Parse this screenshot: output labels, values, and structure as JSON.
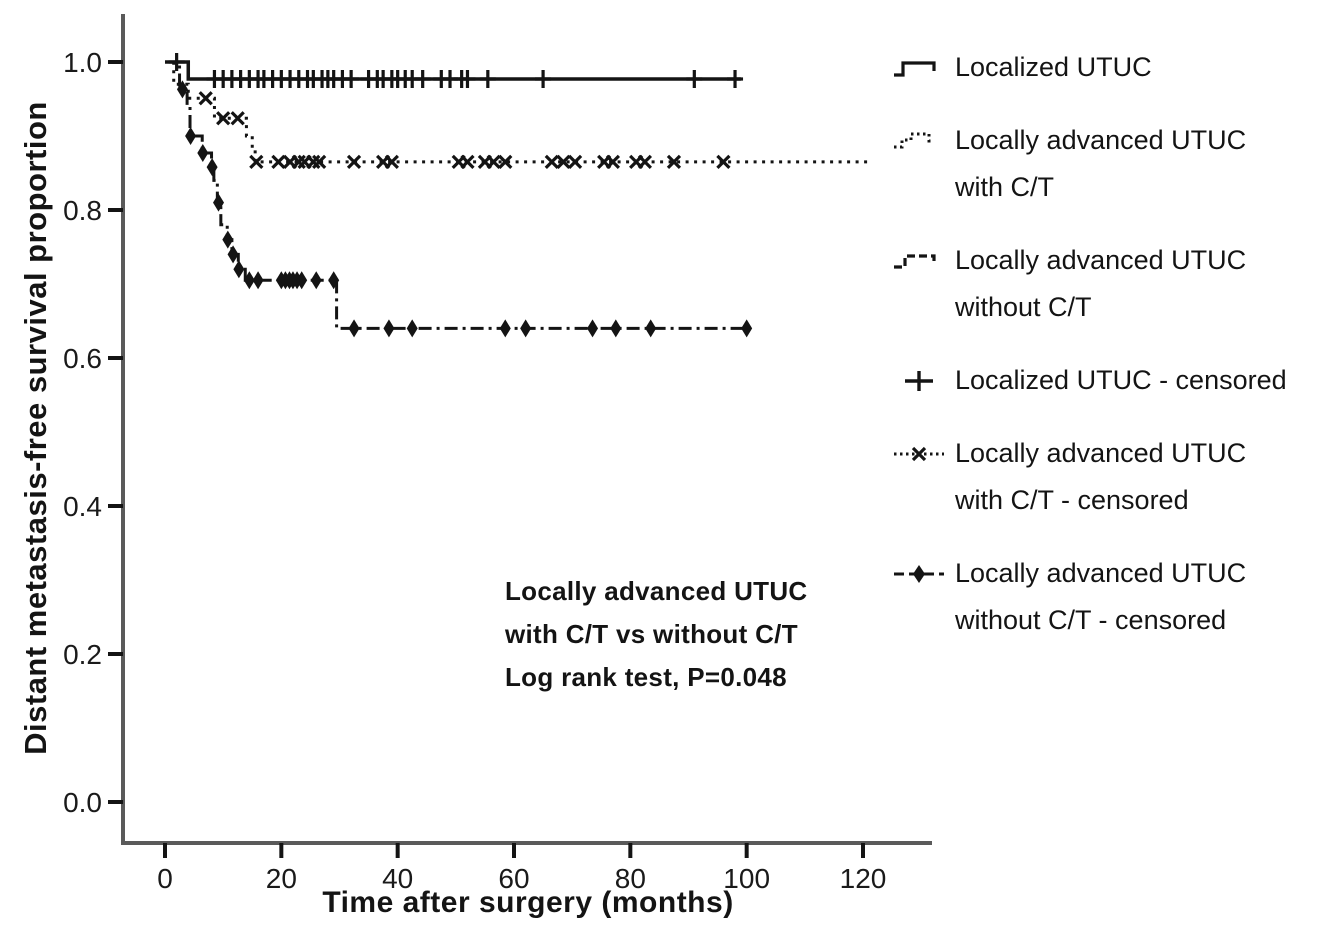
{
  "colors": {
    "ink": "#141414",
    "axis": "#5a5a5a",
    "background": "#ffffff"
  },
  "chart_data": {
    "type": "line",
    "subtype": "kaplan-meier-step",
    "title": "",
    "xlabel": "Time after surgery (months)",
    "ylabel": "Distant metastasis-free survival proportion",
    "xlim": [
      0,
      132
    ],
    "ylim": [
      0.0,
      1.0
    ],
    "x_ticks": [
      "0",
      "20",
      "40",
      "60",
      "80",
      "100",
      "120"
    ],
    "y_ticks": [
      "0.0",
      "0.2",
      "0.4",
      "0.6",
      "0.8",
      "1.0"
    ],
    "grid": false,
    "legend_position": "right-outside",
    "annotation_lines": [
      "Locally advanced UTUC",
      "with C/T vs without C/T",
      "Log rank test, P=0.048"
    ],
    "series": [
      {
        "name": "Localized UTUC",
        "line_style": "solid",
        "marker": "plus",
        "steps": [
          [
            0,
            1.0
          ],
          [
            4,
            0.977
          ],
          [
            99,
            0.977
          ]
        ],
        "censored_times": [
          2,
          8.5,
          10,
          11.5,
          13,
          14.5,
          16,
          17,
          18.5,
          20,
          21.5,
          23,
          24.5,
          25.5,
          27,
          28,
          29,
          30.5,
          32,
          35,
          36.5,
          37.5,
          39,
          40,
          41.3,
          42.5,
          44.3,
          47.5,
          49,
          51,
          52,
          55.5,
          65,
          91,
          98
        ]
      },
      {
        "name": "Locally advanced UTUC with C/T",
        "line_style": "dotted",
        "marker": "x",
        "steps": [
          [
            0,
            1.0
          ],
          [
            1.5,
            0.97
          ],
          [
            4,
            0.951
          ],
          [
            8.5,
            0.924
          ],
          [
            14,
            0.9
          ],
          [
            15,
            0.882
          ],
          [
            15.5,
            0.865
          ],
          [
            121,
            0.865
          ]
        ],
        "censored_times": [
          7,
          10,
          12.5,
          15.7,
          19.5,
          21.5,
          23,
          24,
          25.5,
          26.5,
          32.5,
          37.5,
          39,
          50.5,
          52,
          55,
          56.5,
          58.5,
          66.5,
          68.5,
          70.5,
          75.5,
          77,
          81,
          82.5,
          87.5,
          96
        ]
      },
      {
        "name": "Locally advanced UTUC without C/T",
        "line_style": "dashdot",
        "marker": "diamond",
        "steps": [
          [
            0,
            1.0
          ],
          [
            2.5,
            0.963
          ],
          [
            3.8,
            0.94
          ],
          [
            4.3,
            0.9
          ],
          [
            6.4,
            0.877
          ],
          [
            8,
            0.858
          ],
          [
            8.4,
            0.84
          ],
          [
            9,
            0.81
          ],
          [
            9.6,
            0.78
          ],
          [
            10.7,
            0.76
          ],
          [
            11.5,
            0.74
          ],
          [
            12.6,
            0.72
          ],
          [
            13.8,
            0.705
          ],
          [
            29.5,
            0.64
          ],
          [
            100,
            0.64
          ]
        ],
        "censored_times": [
          3,
          4.4,
          6.5,
          8.1,
          9.2,
          10.8,
          11.7,
          12.7,
          14.5,
          16,
          20,
          20.7,
          21.4,
          22,
          22.7,
          23.5,
          26,
          29,
          32.5,
          38.5,
          42.5,
          58.5,
          62,
          73.5,
          77.5,
          83.5,
          100
        ]
      }
    ]
  },
  "legend": {
    "items": [
      {
        "glyph": "step-solid-icon",
        "label_lines": [
          "Localized UTUC"
        ]
      },
      {
        "glyph": "step-dotted-icon",
        "label_lines": [
          "Locally advanced UTUC",
          "with C/T"
        ]
      },
      {
        "glyph": "step-dashed-icon",
        "label_lines": [
          "Locally advanced UTUC",
          "without C/T"
        ]
      },
      {
        "glyph": "plus-marker-icon",
        "label_lines": [
          "Localized UTUC - censored"
        ]
      },
      {
        "glyph": "x-marker-icon",
        "label_lines": [
          "Locally advanced UTUC",
          "with C/T - censored"
        ]
      },
      {
        "glyph": "diamond-marker-icon",
        "label_lines": [
          "Locally advanced UTUC",
          "without C/T - censored"
        ]
      }
    ]
  }
}
